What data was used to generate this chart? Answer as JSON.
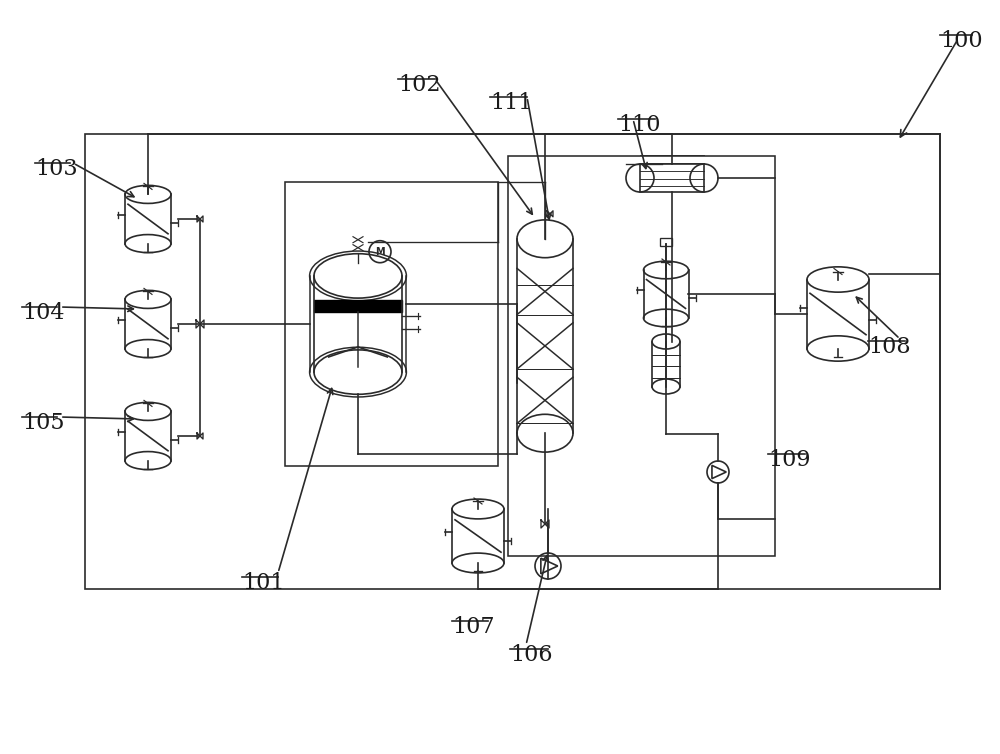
{
  "bg_color": "#ffffff",
  "line_color": "#2a2a2a",
  "label_color": "#1a1a1a"
}
